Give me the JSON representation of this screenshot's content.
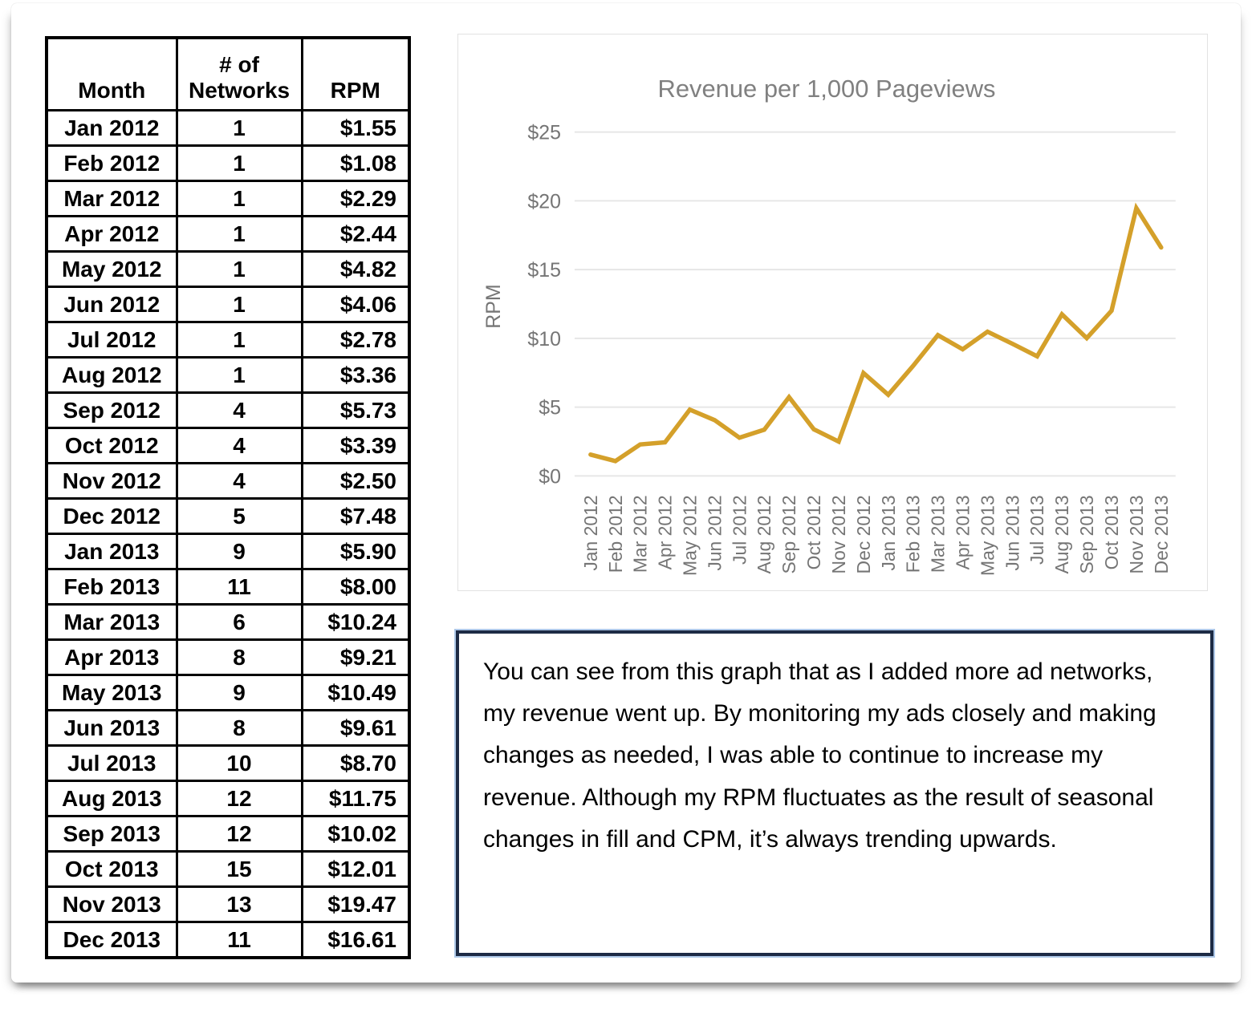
{
  "table": {
    "headers": [
      "Month",
      "# of Networks",
      "RPM"
    ],
    "rows": [
      [
        "Jan 2012",
        "1",
        "$1.55"
      ],
      [
        "Feb 2012",
        "1",
        "$1.08"
      ],
      [
        "Mar 2012",
        "1",
        "$2.29"
      ],
      [
        "Apr 2012",
        "1",
        "$2.44"
      ],
      [
        "May 2012",
        "1",
        "$4.82"
      ],
      [
        "Jun 2012",
        "1",
        "$4.06"
      ],
      [
        "Jul 2012",
        "1",
        "$2.78"
      ],
      [
        "Aug 2012",
        "1",
        "$3.36"
      ],
      [
        "Sep 2012",
        "4",
        "$5.73"
      ],
      [
        "Oct 2012",
        "4",
        "$3.39"
      ],
      [
        "Nov 2012",
        "4",
        "$2.50"
      ],
      [
        "Dec 2012",
        "5",
        "$7.48"
      ],
      [
        "Jan 2013",
        "9",
        "$5.90"
      ],
      [
        "Feb 2013",
        "11",
        "$8.00"
      ],
      [
        "Mar 2013",
        "6",
        "$10.24"
      ],
      [
        "Apr 2013",
        "8",
        "$9.21"
      ],
      [
        "May 2013",
        "9",
        "$10.49"
      ],
      [
        "Jun 2013",
        "8",
        "$9.61"
      ],
      [
        "Jul 2013",
        "10",
        "$8.70"
      ],
      [
        "Aug 2013",
        "12",
        "$11.75"
      ],
      [
        "Sep 2013",
        "12",
        "$10.02"
      ],
      [
        "Oct 2013",
        "15",
        "$12.01"
      ],
      [
        "Nov 2013",
        "13",
        "$19.47"
      ],
      [
        "Dec 2013",
        "11",
        "$16.61"
      ]
    ]
  },
  "chart_data": {
    "type": "line",
    "title": "Revenue per 1,000 Pageviews",
    "xlabel": "",
    "ylabel": "RPM",
    "categories": [
      "Jan 2012",
      "Feb 2012",
      "Mar 2012",
      "Apr 2012",
      "May 2012",
      "Jun 2012",
      "Jul 2012",
      "Aug 2012",
      "Sep 2012",
      "Oct 2012",
      "Nov 2012",
      "Dec 2012",
      "Jan 2013",
      "Feb 2013",
      "Mar 2013",
      "Apr 2013",
      "May 2013",
      "Jun 2013",
      "Jul 2013",
      "Aug 2013",
      "Sep 2013",
      "Oct 2013",
      "Nov 2013",
      "Dec 2013"
    ],
    "values": [
      1.55,
      1.08,
      2.29,
      2.44,
      4.82,
      4.06,
      2.78,
      3.36,
      5.73,
      3.39,
      2.5,
      7.48,
      5.9,
      8.0,
      10.24,
      9.21,
      10.49,
      9.61,
      8.7,
      11.75,
      10.02,
      12.01,
      19.47,
      16.61
    ],
    "ylim": [
      0,
      25
    ],
    "yticks": [
      0,
      5,
      10,
      15,
      20,
      25
    ],
    "ytick_labels": [
      "$0",
      "$5",
      "$10",
      "$15",
      "$20",
      "$25"
    ],
    "grid": true,
    "legend": "none",
    "line_color": "#D4A02A",
    "title_color": "#808080",
    "label_color": "#757575",
    "grid_color": "#e6e6e6"
  },
  "note": {
    "text": "You can see from this graph that as I added more ad networks, my revenue went up. By monitoring my ads closely and making changes as needed, I was able to continue to increase my revenue. Although my RPM fluctuates as the result of seasonal changes in fill and CPM, it’s always trending upwards."
  }
}
